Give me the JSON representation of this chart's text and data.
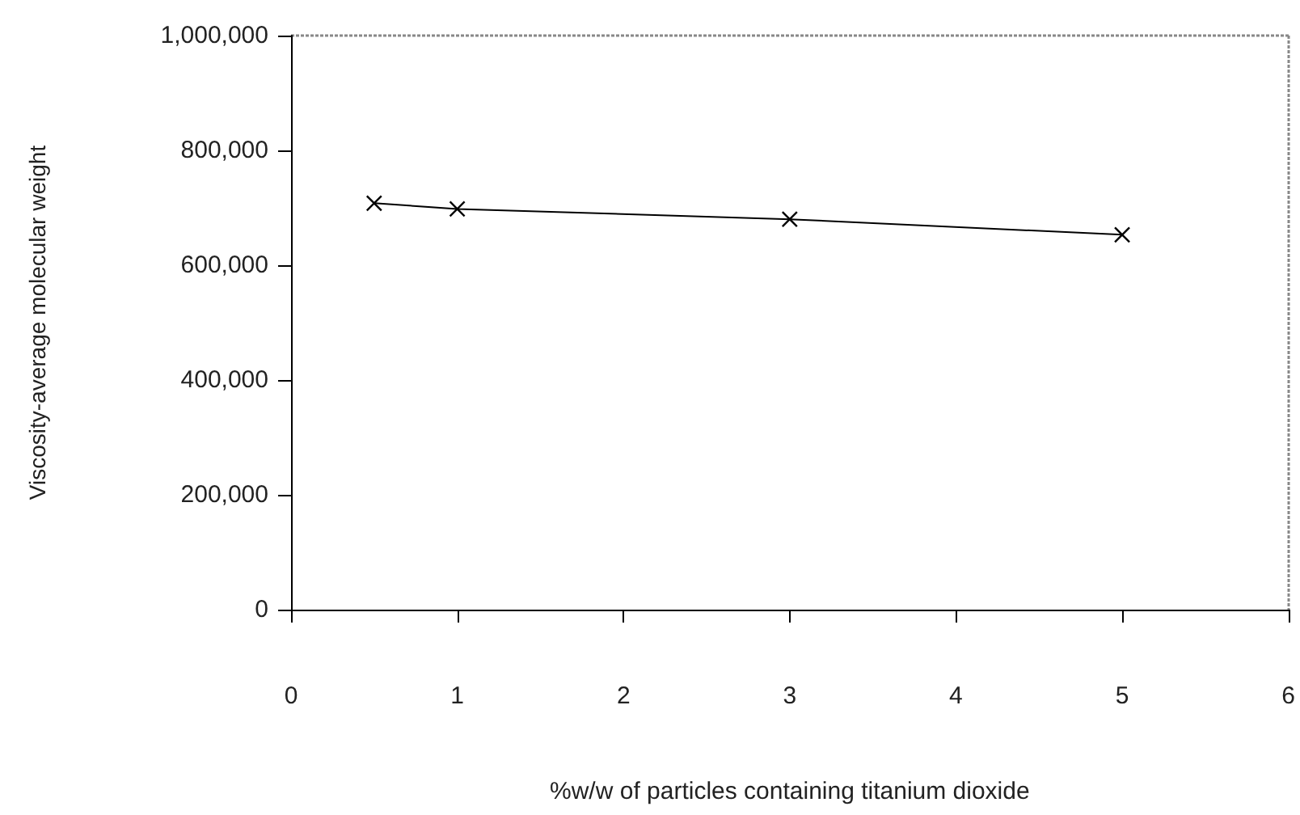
{
  "chart_data": {
    "type": "line",
    "xlabel": "%w/w of particles containing titanium dioxide",
    "ylabel": "Viscosity-average molecular weight",
    "x": [
      0.5,
      1,
      3,
      5
    ],
    "series": [
      {
        "color": "#000000",
        "values": [
          708000,
          698000,
          680000,
          653000
        ]
      }
    ],
    "xlim": [
      0,
      6
    ],
    "xticks": [
      0,
      1,
      2,
      3,
      4,
      5,
      6
    ],
    "ylim": [
      0,
      1000000
    ],
    "yticks": [
      0,
      {
        "value": 200000,
        "label": "200,000"
      },
      {
        "value": 400000,
        "label": "400,000"
      },
      {
        "value": 600000,
        "label": "600,000"
      },
      {
        "value": 800000,
        "label": "800,000"
      },
      {
        "value": 1000000,
        "label": "1,000,000"
      }
    ],
    "grid": false,
    "marker": "cross",
    "line_style": "solid"
  }
}
